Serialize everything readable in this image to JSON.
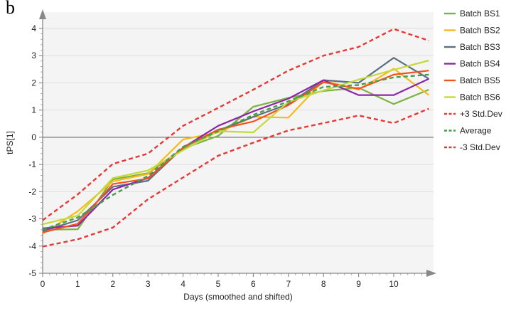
{
  "panel_label": "b",
  "chart_data": {
    "type": "line",
    "title": "",
    "xlabel": "Days (smoothed and shifted)",
    "ylabel": "tPS[1]",
    "xlim": [
      -0.2,
      11.1
    ],
    "ylim": [
      -5,
      4.6
    ],
    "x_ticks": [
      0,
      1,
      2,
      3,
      4,
      5,
      6,
      7,
      8,
      9,
      10
    ],
    "y_ticks": [
      -5,
      -4,
      -3,
      -2,
      -1,
      0,
      1,
      2,
      3,
      4
    ],
    "grid": true,
    "legend_position": "right",
    "x": [
      0,
      1,
      2,
      3,
      4,
      5,
      6,
      7,
      8,
      9,
      10,
      11
    ],
    "series": [
      {
        "name": "Batch BS1",
        "color": "#7cb342",
        "dash": "solid",
        "values": [
          -3.4,
          -3.38,
          -1.55,
          -1.32,
          -0.42,
          0.05,
          1.12,
          1.45,
          1.7,
          1.82,
          1.22,
          1.75
        ]
      },
      {
        "name": "Batch BS2",
        "color": "#f9b91c",
        "dash": "solid",
        "values": [
          -3.55,
          -2.72,
          -1.62,
          -1.35,
          -0.08,
          0.18,
          0.75,
          0.72,
          2.08,
          1.75,
          2.52,
          1.55
        ]
      },
      {
        "name": "Batch BS3",
        "color": "#5b7083",
        "dash": "solid",
        "values": [
          -3.45,
          -3.05,
          -1.82,
          -1.6,
          -0.38,
          0.25,
          0.75,
          1.22,
          2.1,
          2.0,
          2.92,
          2.15
        ]
      },
      {
        "name": "Batch BS4",
        "color": "#8e24aa",
        "dash": "solid",
        "values": [
          -3.35,
          -3.25,
          -1.92,
          -1.5,
          -0.38,
          0.42,
          0.95,
          1.42,
          2.1,
          1.55,
          1.55,
          2.15
        ]
      },
      {
        "name": "Batch BS5",
        "color": "#f4511e",
        "dash": "solid",
        "values": [
          -3.5,
          -3.18,
          -1.72,
          -1.52,
          -0.38,
          0.28,
          0.58,
          1.18,
          2.02,
          1.78,
          2.3,
          2.45
        ]
      },
      {
        "name": "Batch BS6",
        "color": "#c6d93a",
        "dash": "solid",
        "values": [
          -3.2,
          -2.88,
          -1.5,
          -1.22,
          -0.48,
          0.22,
          0.18,
          1.3,
          1.72,
          2.12,
          2.48,
          2.82
        ]
      },
      {
        "name": "+3 Std.Dev",
        "color": "#e53935",
        "dash": "dash",
        "values": [
          -3.05,
          -2.1,
          -0.98,
          -0.6,
          0.42,
          1.08,
          1.75,
          2.45,
          3.0,
          3.32,
          3.98,
          3.55
        ]
      },
      {
        "name": "Average",
        "color": "#43a047",
        "dash": "dash",
        "values": [
          -3.4,
          -2.95,
          -2.12,
          -1.42,
          -0.35,
          0.22,
          0.82,
          1.32,
          1.85,
          1.92,
          2.2,
          2.3
        ]
      },
      {
        "name": "-3 Std.Dev",
        "color": "#e53935",
        "dash": "dash",
        "values": [
          -4.02,
          -3.75,
          -3.32,
          -2.28,
          -1.48,
          -0.68,
          -0.2,
          0.25,
          0.52,
          0.8,
          0.52,
          1.05
        ]
      }
    ]
  }
}
